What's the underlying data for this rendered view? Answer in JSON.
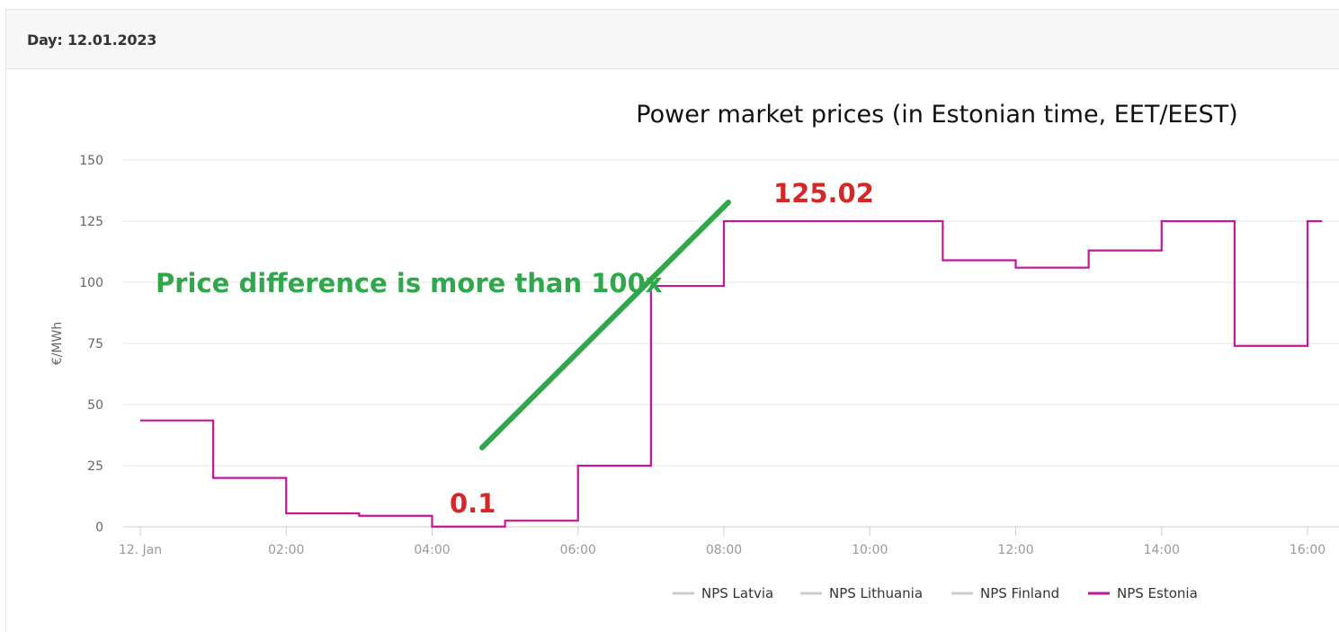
{
  "panel": {
    "title": "Day: 12.01.2023"
  },
  "chart_data": {
    "type": "line",
    "title": "Power market prices (in Estonian time, EET/EEST)",
    "ylabel": "€/MWh",
    "xlabel": "",
    "ylim": [
      0,
      150
    ],
    "xlim": [
      0,
      16.2
    ],
    "y_ticks": [
      0,
      25,
      50,
      75,
      100,
      125,
      150
    ],
    "x_ticks": [
      {
        "hour": 0,
        "label": "12. Jan"
      },
      {
        "hour": 2,
        "label": "02:00"
      },
      {
        "hour": 4,
        "label": "04:00"
      },
      {
        "hour": 6,
        "label": "06:00"
      },
      {
        "hour": 8,
        "label": "08:00"
      },
      {
        "hour": 10,
        "label": "10:00"
      },
      {
        "hour": 12,
        "label": "12:00"
      },
      {
        "hour": 14,
        "label": "14:00"
      },
      {
        "hour": 16,
        "label": "16:00"
      }
    ],
    "grid": true,
    "step": true,
    "legend_position": "bottom",
    "series": [
      {
        "name": "NPS Latvia",
        "color": "#cccccc",
        "values": []
      },
      {
        "name": "NPS Lithuania",
        "color": "#cccccc",
        "values": []
      },
      {
        "name": "NPS Finland",
        "color": "#cccccc",
        "values": []
      },
      {
        "name": "NPS Estonia",
        "color": "#c4169a",
        "x": [
          0,
          1,
          2,
          3,
          4,
          5,
          6,
          7,
          8,
          9,
          10,
          11,
          12,
          13,
          14,
          15,
          16
        ],
        "values": [
          43.5,
          20,
          5.5,
          4.5,
          0.1,
          2.5,
          25,
          98.5,
          125.02,
          125.02,
          125.02,
          109,
          106,
          113,
          125,
          74,
          125
        ]
      }
    ],
    "annotations": [
      {
        "text": "125.02",
        "color": "#d62727"
      },
      {
        "text": "0.1",
        "color": "#d62727"
      },
      {
        "text": "Price difference is more than 100x",
        "color": "#2ea84a"
      }
    ]
  }
}
